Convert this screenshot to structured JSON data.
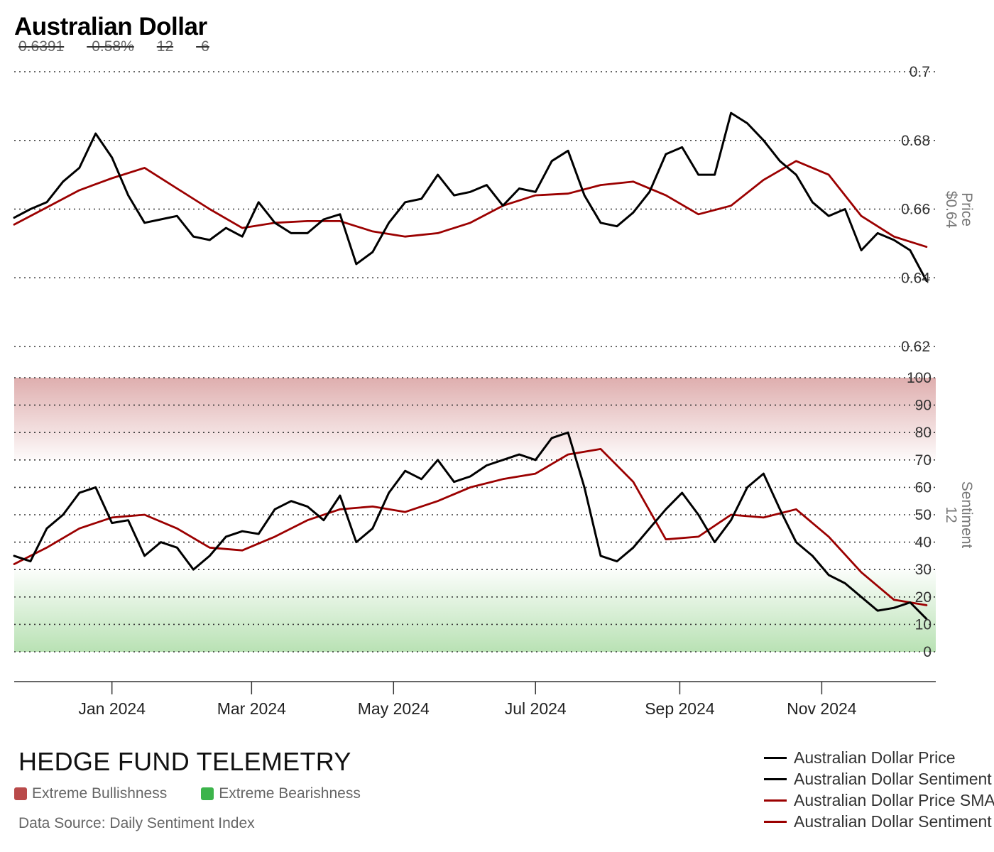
{
  "header": {
    "title": "Australian Dollar",
    "stats": [
      "0.6391",
      "-0.58%",
      "12",
      "-6"
    ]
  },
  "footer": {
    "brand": "HEDGE FUND TELEMETRY",
    "zones": [
      {
        "label": "Extreme Bullishness",
        "color": "#b94a4a"
      },
      {
        "label": "Extreme Bearishness",
        "color": "#3cb44b"
      }
    ],
    "source": "Data Source: Daily Sentiment Index"
  },
  "legend": [
    {
      "label": "Australian Dollar Price",
      "color": "#000000"
    },
    {
      "label": "Australian Dollar Sentiment",
      "color": "#000000"
    },
    {
      "label": "Australian Dollar Price SMA",
      "color": "#9b0000"
    },
    {
      "label": "Australian Dollar Sentiment SMA",
      "color": "#9b0000"
    }
  ],
  "colors": {
    "price": "#000000",
    "sma": "#9b0000",
    "bull_zone": "#d9a0a0",
    "bear_zone": "#b5e0b0"
  },
  "chart_data": [
    {
      "type": "line",
      "panel": "price",
      "title": "Australian Dollar",
      "ylabel": "Price",
      "ylabel_value": "$0.64",
      "ylim": [
        0.62,
        0.7
      ],
      "yticks": [
        "0.62",
        "0.64",
        "0.66",
        "0.68",
        "0.7"
      ],
      "xlim": [
        "2023-11-20",
        "2024-12-20"
      ],
      "xticks": [
        "2024-01-01",
        "2024-03-01",
        "2024-05-01",
        "2024-07-01",
        "2024-09-01",
        "2024-11-01"
      ],
      "xtick_labels": [
        "Jan 2024",
        "Mar 2024",
        "May 2024",
        "Jul 2024",
        "Sep 2024",
        "Nov 2024"
      ],
      "grid": true,
      "series": [
        {
          "name": "Australian Dollar Price",
          "x": [
            "2023-11-20",
            "2023-11-27",
            "2023-12-04",
            "2023-12-11",
            "2023-12-18",
            "2023-12-25",
            "2024-01-01",
            "2024-01-08",
            "2024-01-15",
            "2024-01-22",
            "2024-01-29",
            "2024-02-05",
            "2024-02-12",
            "2024-02-19",
            "2024-02-26",
            "2024-03-04",
            "2024-03-11",
            "2024-03-18",
            "2024-03-25",
            "2024-04-01",
            "2024-04-08",
            "2024-04-15",
            "2024-04-22",
            "2024-04-29",
            "2024-05-06",
            "2024-05-13",
            "2024-05-20",
            "2024-05-27",
            "2024-06-03",
            "2024-06-10",
            "2024-06-17",
            "2024-06-24",
            "2024-07-01",
            "2024-07-08",
            "2024-07-15",
            "2024-07-22",
            "2024-07-29",
            "2024-08-05",
            "2024-08-12",
            "2024-08-19",
            "2024-08-26",
            "2024-09-02",
            "2024-09-09",
            "2024-09-16",
            "2024-09-23",
            "2024-09-30",
            "2024-10-07",
            "2024-10-14",
            "2024-10-21",
            "2024-10-28",
            "2024-11-04",
            "2024-11-11",
            "2024-11-18",
            "2024-11-25",
            "2024-12-02",
            "2024-12-09",
            "2024-12-16"
          ],
          "y": [
            0.6575,
            0.66,
            0.662,
            0.668,
            0.672,
            0.682,
            0.675,
            0.664,
            0.656,
            0.657,
            0.658,
            0.652,
            0.651,
            0.6545,
            0.652,
            0.662,
            0.656,
            0.653,
            0.653,
            0.657,
            0.6585,
            0.644,
            0.6475,
            0.656,
            0.662,
            0.663,
            0.67,
            0.664,
            0.665,
            0.667,
            0.661,
            0.666,
            0.665,
            0.674,
            0.677,
            0.664,
            0.656,
            0.655,
            0.659,
            0.665,
            0.676,
            0.678,
            0.67,
            0.67,
            0.688,
            0.685,
            0.68,
            0.674,
            0.67,
            0.662,
            0.658,
            0.66,
            0.648,
            0.653,
            0.651,
            0.648,
            0.6391
          ]
        },
        {
          "name": "Australian Dollar Price SMA",
          "x": [
            "2023-11-20",
            "2023-12-04",
            "2023-12-18",
            "2024-01-01",
            "2024-01-15",
            "2024-01-29",
            "2024-02-12",
            "2024-02-26",
            "2024-03-11",
            "2024-03-25",
            "2024-04-08",
            "2024-04-22",
            "2024-05-06",
            "2024-05-20",
            "2024-06-03",
            "2024-06-17",
            "2024-07-01",
            "2024-07-15",
            "2024-07-29",
            "2024-08-12",
            "2024-08-26",
            "2024-09-09",
            "2024-09-23",
            "2024-10-07",
            "2024-10-21",
            "2024-11-04",
            "2024-11-18",
            "2024-12-02",
            "2024-12-16"
          ],
          "y": [
            0.6555,
            0.6605,
            0.6655,
            0.669,
            0.672,
            0.666,
            0.66,
            0.6545,
            0.656,
            0.6565,
            0.6565,
            0.6535,
            0.652,
            0.653,
            0.656,
            0.661,
            0.664,
            0.6645,
            0.667,
            0.668,
            0.664,
            0.6585,
            0.661,
            0.6685,
            0.674,
            0.67,
            0.658,
            0.652,
            0.649
          ]
        }
      ]
    },
    {
      "type": "line",
      "panel": "sentiment",
      "ylabel": "Sentiment",
      "ylabel_value": "12",
      "ylim": [
        0,
        100
      ],
      "yticks": [
        "0",
        "10",
        "20",
        "30",
        "40",
        "50",
        "60",
        "70",
        "80",
        "90",
        "100"
      ],
      "bands": [
        {
          "name": "Extreme Bullishness",
          "range": [
            70,
            100
          ]
        },
        {
          "name": "Extreme Bearishness",
          "range": [
            0,
            30
          ]
        }
      ],
      "series": [
        {
          "name": "Australian Dollar Sentiment",
          "x": [
            "2023-11-20",
            "2023-11-27",
            "2023-12-04",
            "2023-12-11",
            "2023-12-18",
            "2023-12-25",
            "2024-01-01",
            "2024-01-08",
            "2024-01-15",
            "2024-01-22",
            "2024-01-29",
            "2024-02-05",
            "2024-02-12",
            "2024-02-19",
            "2024-02-26",
            "2024-03-04",
            "2024-03-11",
            "2024-03-18",
            "2024-03-25",
            "2024-04-01",
            "2024-04-08",
            "2024-04-15",
            "2024-04-22",
            "2024-04-29",
            "2024-05-06",
            "2024-05-13",
            "2024-05-20",
            "2024-05-27",
            "2024-06-03",
            "2024-06-10",
            "2024-06-17",
            "2024-06-24",
            "2024-07-01",
            "2024-07-08",
            "2024-07-15",
            "2024-07-22",
            "2024-07-29",
            "2024-08-05",
            "2024-08-12",
            "2024-08-19",
            "2024-08-26",
            "2024-09-02",
            "2024-09-09",
            "2024-09-16",
            "2024-09-23",
            "2024-09-30",
            "2024-10-07",
            "2024-10-14",
            "2024-10-21",
            "2024-10-28",
            "2024-11-04",
            "2024-11-11",
            "2024-11-18",
            "2024-11-25",
            "2024-12-02",
            "2024-12-09",
            "2024-12-16"
          ],
          "y": [
            35,
            33,
            45,
            50,
            58,
            60,
            47,
            48,
            35,
            40,
            38,
            30,
            35,
            42,
            44,
            43,
            52,
            55,
            53,
            48,
            57,
            40,
            45,
            58,
            66,
            63,
            70,
            62,
            64,
            68,
            70,
            72,
            70,
            78,
            80,
            60,
            35,
            33,
            38,
            45,
            52,
            58,
            50,
            40,
            48,
            60,
            65,
            52,
            40,
            35,
            28,
            25,
            20,
            15,
            16,
            18,
            12
          ]
        },
        {
          "name": "Australian Dollar Sentiment SMA",
          "x": [
            "2023-11-20",
            "2023-12-04",
            "2023-12-18",
            "2024-01-01",
            "2024-01-15",
            "2024-01-29",
            "2024-02-12",
            "2024-02-26",
            "2024-03-11",
            "2024-03-25",
            "2024-04-08",
            "2024-04-22",
            "2024-05-06",
            "2024-05-20",
            "2024-06-03",
            "2024-06-17",
            "2024-07-01",
            "2024-07-15",
            "2024-07-29",
            "2024-08-12",
            "2024-08-26",
            "2024-09-09",
            "2024-09-23",
            "2024-10-07",
            "2024-10-21",
            "2024-11-04",
            "2024-11-18",
            "2024-12-02",
            "2024-12-16"
          ],
          "y": [
            32,
            38,
            45,
            49,
            50,
            45,
            38,
            37,
            42,
            48,
            52,
            53,
            51,
            55,
            60,
            63,
            65,
            72,
            74,
            62,
            41,
            42,
            50,
            49,
            52,
            42,
            29,
            19,
            17
          ]
        }
      ]
    }
  ]
}
